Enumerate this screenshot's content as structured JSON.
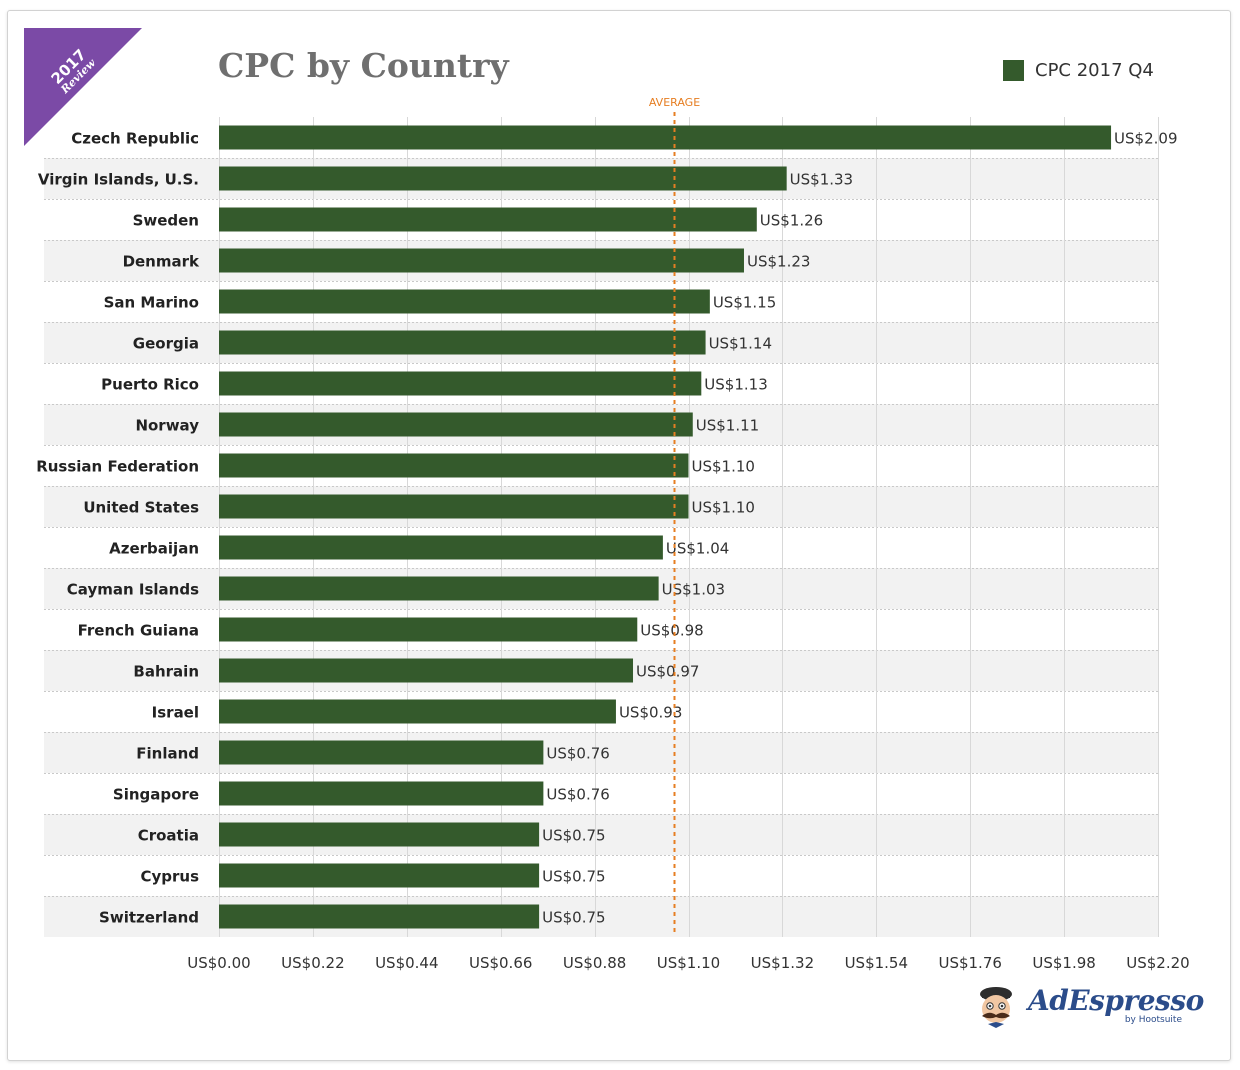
{
  "badge": {
    "year": "2017",
    "subtitle": "Review"
  },
  "brand": {
    "name": "AdEspresso",
    "byline": "by Hootsuite"
  },
  "colors": {
    "bar": "#345a2c",
    "average_line": "#e67e22",
    "badge": "#7b4aa6",
    "title": "#6f6f6f",
    "brand": "#2b4c8a"
  },
  "chart_data": {
    "type": "bar",
    "orientation": "horizontal",
    "title": "CPC by Country",
    "xlabel": "",
    "ylabel": "",
    "categories": [
      "Czech Republic",
      "Virgin Islands, U.S.",
      "Sweden",
      "Denmark",
      "San Marino",
      "Georgia",
      "Puerto Rico",
      "Norway",
      "Russian Federation",
      "United States",
      "Azerbaijan",
      "Cayman Islands",
      "French Guiana",
      "Bahrain",
      "Israel",
      "Finland",
      "Singapore",
      "Croatia",
      "Cyprus",
      "Switzerland"
    ],
    "series": [
      {
        "name": "CPC 2017 Q4",
        "values": [
          2.09,
          1.33,
          1.26,
          1.23,
          1.15,
          1.14,
          1.13,
          1.11,
          1.1,
          1.1,
          1.04,
          1.03,
          0.98,
          0.97,
          0.93,
          0.76,
          0.76,
          0.75,
          0.75,
          0.75
        ],
        "labels": [
          "US$2.09",
          "US$1.33",
          "US$1.26",
          "US$1.23",
          "US$1.15",
          "US$1.14",
          "US$1.13",
          "US$1.11",
          "US$1.10",
          "US$1.10",
          "US$1.04",
          "US$1.03",
          "US$0.98",
          "US$0.97",
          "US$0.93",
          "US$0.76",
          "US$0.76",
          "US$0.75",
          "US$0.75",
          "US$0.75"
        ]
      }
    ],
    "xlim": [
      0,
      2.2
    ],
    "xticks": [
      0,
      0.22,
      0.44,
      0.66,
      0.88,
      1.1,
      1.32,
      1.54,
      1.76,
      1.98,
      2.2
    ],
    "xtick_labels": [
      "US$0.00",
      "US$0.22",
      "US$0.44",
      "US$0.66",
      "US$0.88",
      "US$1.10",
      "US$1.32",
      "US$1.54",
      "US$1.76",
      "US$1.98",
      "US$2.20"
    ],
    "average": {
      "label": "AVERAGE",
      "value": 1.065
    },
    "grid": true,
    "legend": "top-right"
  }
}
